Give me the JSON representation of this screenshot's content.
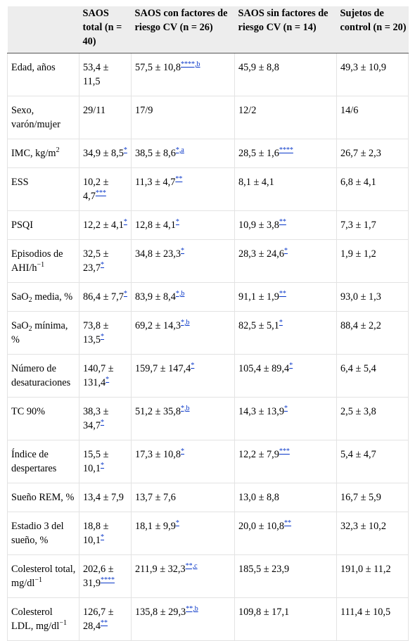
{
  "table": {
    "headers": [
      "",
      "SAOS total (n = 40)",
      "SAOS con factores de riesgo CV (n = 26)",
      "SAOS sin factores de riesgo CV (n = 14)",
      "Sujetos de control (n = 20)"
    ],
    "rows": [
      {
        "label": "Edad, años",
        "cells": [
          [
            "53,4 ± 11,5",
            ""
          ],
          [
            "57,5 ± 10,8",
            "****,b"
          ],
          [
            "45,9 ± 8,8",
            ""
          ],
          [
            "49,3 ± 10,9",
            ""
          ]
        ]
      },
      {
        "label": "Sexo, varón/mujer",
        "cells": [
          [
            "29/11",
            ""
          ],
          [
            "17/9",
            ""
          ],
          [
            "12/2",
            ""
          ],
          [
            "14/6",
            ""
          ]
        ]
      },
      {
        "label": "IMC, kg/m",
        "label_sup": "2",
        "cells": [
          [
            "34,9 ± 8,5",
            "*"
          ],
          [
            "38,5 ± 8,6",
            "*,a"
          ],
          [
            "28,5 ± 1,6",
            "****"
          ],
          [
            "26,7 ± 2,3",
            ""
          ]
        ]
      },
      {
        "label": "ESS",
        "cells": [
          [
            "10,2 ± 4,7",
            "***"
          ],
          [
            "11,3 ± 4,7",
            "**"
          ],
          [
            "8,1 ± 4,1",
            ""
          ],
          [
            "6,8 ± 4,1",
            ""
          ]
        ]
      },
      {
        "label": "PSQI",
        "cells": [
          [
            "12,2 ± 4,1",
            "*"
          ],
          [
            "12,8 ± 4,1",
            "*"
          ],
          [
            "10,9 ± 3,8",
            "**"
          ],
          [
            "7,3 ± 1,7",
            ""
          ]
        ]
      },
      {
        "label": "Episodios de AHI/h",
        "label_sup": "−1",
        "cells": [
          [
            "32,5 ± 23,7",
            "*"
          ],
          [
            "34,8 ± 23,3",
            "*"
          ],
          [
            "28,3 ± 24,6",
            "*"
          ],
          [
            "1,9 ± 1,2",
            ""
          ]
        ]
      },
      {
        "label": "SaO",
        "label_sub": "2",
        "label_rest": " media, %",
        "cells": [
          [
            "86,4 ± 7,7",
            "*"
          ],
          [
            "83,9 ± 8,4",
            "*,b"
          ],
          [
            "91,1 ± 1,9",
            "**"
          ],
          [
            "93,0 ± 1,3",
            ""
          ]
        ]
      },
      {
        "label": "SaO",
        "label_sub": "2",
        "label_rest": " mínima, %",
        "cells": [
          [
            "73,8 ± 13,5",
            "*"
          ],
          [
            "69,2 ± 14,3",
            "*,b"
          ],
          [
            "82,5 ± 5,1",
            "*"
          ],
          [
            "88,4 ± 2,2",
            ""
          ]
        ]
      },
      {
        "label": "Número de desaturaciones",
        "cells": [
          [
            "140,7 ± 131,4",
            "*"
          ],
          [
            "159,7 ± 147,4",
            "*"
          ],
          [
            "105,4 ± 89,4",
            "*"
          ],
          [
            "6,4 ± 5,4",
            ""
          ]
        ]
      },
      {
        "label": "TC 90%",
        "cells": [
          [
            "38,3 ± 34,7",
            "*"
          ],
          [
            "51,2 ± 35,8",
            "*,b"
          ],
          [
            "14,3 ± 13,9",
            "*"
          ],
          [
            "2,5 ± 3,8",
            ""
          ]
        ]
      },
      {
        "label": "Índice de despertares",
        "cells": [
          [
            "15,5 ± 10,1",
            "*"
          ],
          [
            "17,3 ± 10,8",
            "*"
          ],
          [
            "12,2 ± 7,9",
            "***"
          ],
          [
            "5,4 ± 4,7",
            ""
          ]
        ]
      },
      {
        "label": "Sueño REM, %",
        "cells": [
          [
            "13,4 ± 7,9",
            ""
          ],
          [
            "13,7 ± 7,6",
            ""
          ],
          [
            "13,0 ± 8,8",
            ""
          ],
          [
            "16,7 ± 5,9",
            ""
          ]
        ]
      },
      {
        "label": "Estadio 3 del sueño, %",
        "cells": [
          [
            "18,8 ± 10,1",
            "*"
          ],
          [
            "18,1 ± 9,9",
            "*"
          ],
          [
            "20,0 ± 10,8",
            "**"
          ],
          [
            "32,3 ± 10,2",
            ""
          ]
        ]
      },
      {
        "label": "Colesterol total, mg/dl",
        "label_sup": "−1",
        "cells": [
          [
            "202,6 ± 31,9",
            "****"
          ],
          [
            "211,9 ± 32,3",
            "**,c"
          ],
          [
            "185,5 ± 23,9",
            ""
          ],
          [
            "191,0 ± 11,2",
            ""
          ]
        ]
      },
      {
        "label": "Colesterol LDL, mg/dl",
        "label_sup": "−1",
        "cells": [
          [
            "126,7 ± 28,4",
            "**"
          ],
          [
            "135,8 ± 29,3",
            "**,b"
          ],
          [
            "109,8 ± 17,1",
            ""
          ],
          [
            "111,4 ± 10,5",
            ""
          ]
        ]
      }
    ]
  }
}
